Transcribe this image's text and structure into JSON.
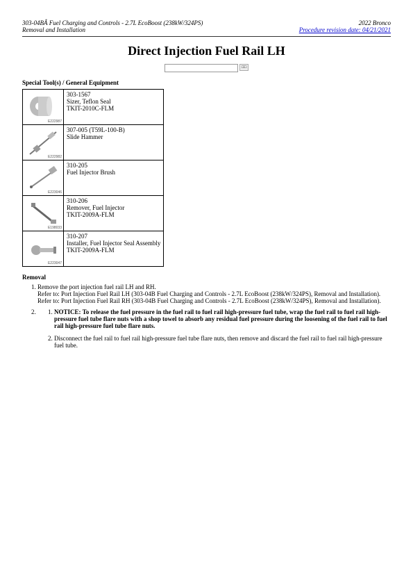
{
  "header": {
    "left_line1": "303-04BÂ Fuel Charging and Controls - 2.7L EcoBoost (238kW/324PS)",
    "left_line2": "Removal and Installation",
    "right_line1": "2022 Bronco",
    "right_link": "Procedure revision date: 04/21/2021"
  },
  "title": "Direct Injection Fuel Rail LH",
  "search": {
    "placeholder": "",
    "button": "□□"
  },
  "special_tools_heading": "Special Tool(s) / General Equipment",
  "tools": [
    {
      "code": "303-1567",
      "name": "Sizer, Teflon Seal",
      "kit": "TKIT-2010C-FLM",
      "img_id": "E222987",
      "svg": "<svg viewBox='0 0 50 46' width='50' height='46'><ellipse cx='18' cy='22' rx='12' ry='14' fill='#bbb'/><ellipse cx='18' cy='22' rx='4' ry='5' fill='#fff'/><rect x='18' y='8' width='16' height='28' fill='#ccc'/><ellipse cx='34' cy='22' rx='4' ry='14' fill='#ddd'/></svg>"
    },
    {
      "code": "307-005 (T59L-100-B)",
      "name": "Slide Hammer",
      "kit": "",
      "img_id": "E222982",
      "svg": "<svg viewBox='0 0 50 46' width='50' height='46'><line x1='6' y1='40' x2='44' y2='8' stroke='#777' stroke-width='2'/><rect x='12' y='28' width='8' height='8' fill='#999' transform='rotate(-40 16 32)'/><rect x='32' y='10' width='10' height='6' fill='#bbb' transform='rotate(-40 37 13)'/></svg>"
    },
    {
      "code": "310-205",
      "name": "Fuel Injector Brush",
      "kit": "",
      "img_id": "E223046",
      "svg": "<svg viewBox='0 0 50 46' width='50' height='46'><line x1='8' y1='36' x2='42' y2='12' stroke='#888' stroke-width='2'/><rect x='34' y='8' width='10' height='8' fill='#aaa' transform='rotate(-35 39 12)'/><circle cx='8' cy='36' r='2' fill='#666'/></svg>"
    },
    {
      "code": "310-206",
      "name": "Remover, Fuel Injector",
      "kit": "TKIT-2009A-FLM",
      "img_id": "E198033",
      "svg": "<svg viewBox='0 0 50 46' width='50' height='46'><line x1='10' y1='12' x2='40' y2='36' stroke='#666' stroke-width='3'/><rect x='8' y='8' width='6' height='6' fill='#888'/><rect x='36' y='32' width='8' height='6' fill='#999'/></svg>"
    },
    {
      "code": "310-207",
      "name": "Installer, Fuel Injector Seal Assembly",
      "kit": "TKIT-2009A-FLM",
      "img_id": "E223047",
      "svg": "<svg viewBox='0 0 50 46' width='50' height='46'><rect x='8' y='18' width='14' height='14' rx='7' fill='#aaa'/><rect x='20' y='22' width='22' height='6' fill='#bbb'/><rect x='40' y='20' width='4' height='10' fill='#888'/></svg>"
    }
  ],
  "removal_heading": "Removal",
  "removal": {
    "item1": {
      "line1": "Remove the port injection fuel rail LH and RH.",
      "line2": "Refer to: Port Injection Fuel Rail LH (303-04B Fuel Charging and Controls - 2.7L EcoBoost (238kW/324PS), Removal and Installation).",
      "line3": "Refer to: Port Injection Fuel Rail RH (303-04B Fuel Charging and Controls - 2.7L EcoBoost (238kW/324PS), Removal and Installation)."
    },
    "item2_empty": "",
    "inner1_notice": "NOTICE: To release the fuel pressure in the fuel rail to fuel rail high-pressure fuel tube, wrap the fuel rail to fuel rail high-pressure fuel tube flare nuts with a shop towel to absorb any residual fuel pressure during the loosening of the fuel rail to fuel rail high-pressure fuel tube flare nuts.",
    "inner2": "Disconnect the fuel rail to fuel rail high-pressure fuel tube flare nuts, then remove and discard the fuel rail to fuel rail high-pressure fuel tube."
  }
}
